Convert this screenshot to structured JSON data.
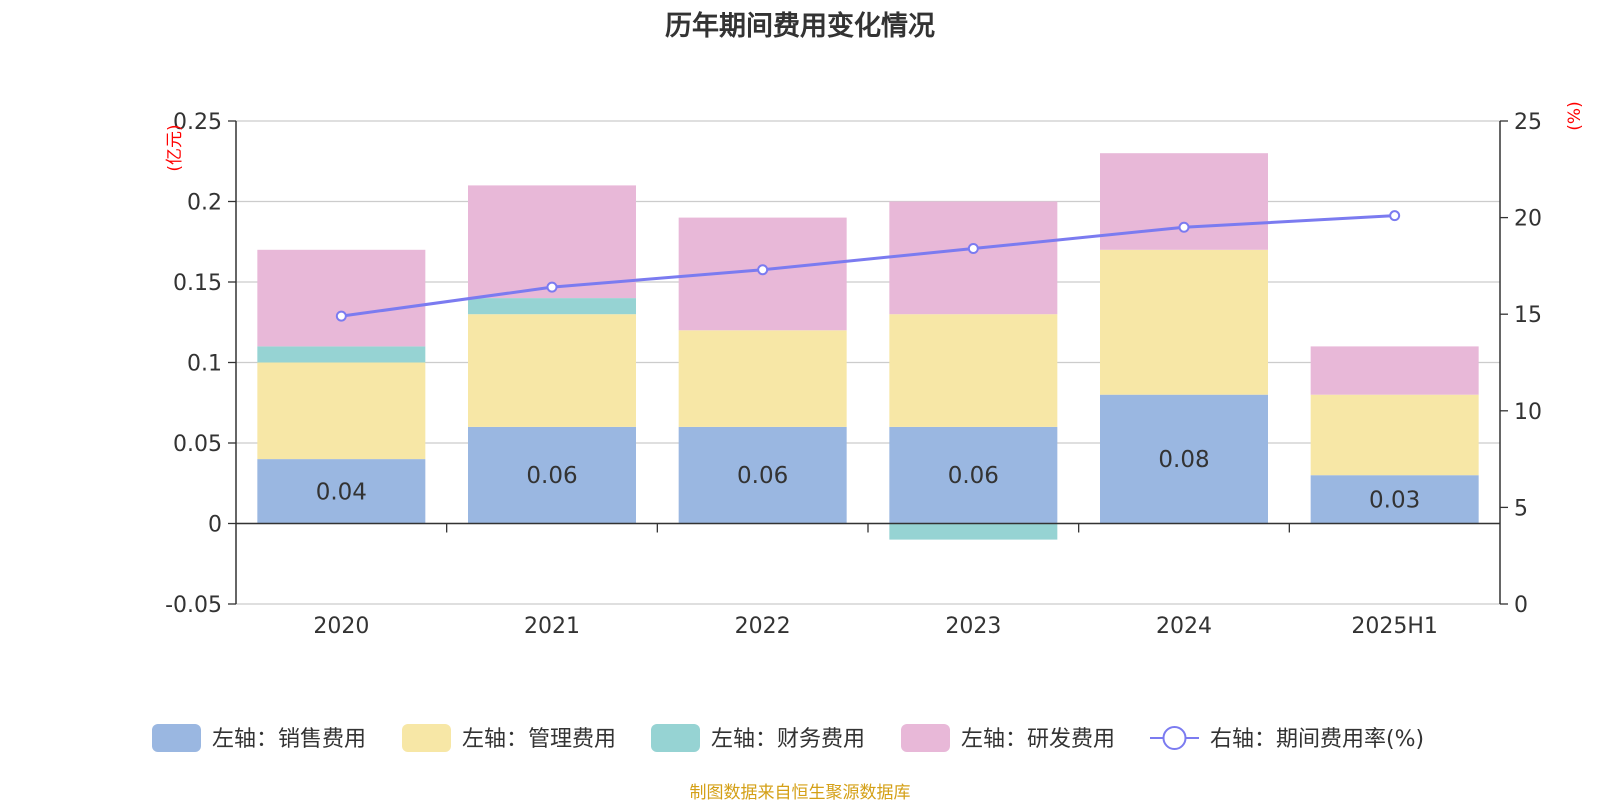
{
  "title": "历年期间费用变化情况",
  "source_note": "制图数据来自恒生聚源数据库",
  "left_unit": "(亿元)",
  "right_unit": "(%)",
  "colors": {
    "sales": "#9ab7e1",
    "admin": "#f7e7a6",
    "finance": "#96d3d3",
    "rnd": "#e8b8d8",
    "rate_line": "#7b7bf0",
    "unit_text": "#ff0000",
    "source_text": "#d4a017"
  },
  "legend": [
    {
      "label": "左轴：销售费用",
      "icon": "swatch",
      "key": "sales"
    },
    {
      "label": "左轴：管理费用",
      "icon": "swatch",
      "key": "admin"
    },
    {
      "label": "左轴：财务费用",
      "icon": "swatch",
      "key": "finance"
    },
    {
      "label": "左轴：研发费用",
      "icon": "swatch",
      "key": "rnd"
    },
    {
      "label": "右轴：期间费用率(%)",
      "icon": "line-circle",
      "key": "rate_line"
    }
  ],
  "chart_data": {
    "type": "bar",
    "stacked": true,
    "categories": [
      "2020",
      "2021",
      "2022",
      "2023",
      "2024",
      "2025H1"
    ],
    "series": [
      {
        "name": "左轴：销售费用",
        "axis": "left",
        "values": [
          0.04,
          0.06,
          0.06,
          0.06,
          0.08,
          0.03
        ]
      },
      {
        "name": "左轴：管理费用",
        "axis": "left",
        "values": [
          0.06,
          0.07,
          0.06,
          0.07,
          0.09,
          0.05
        ]
      },
      {
        "name": "左轴：财务费用",
        "axis": "left",
        "values": [
          0.01,
          0.01,
          0.0,
          -0.01,
          0.0,
          0.0
        ]
      },
      {
        "name": "左轴：研发费用",
        "axis": "left",
        "values": [
          0.06,
          0.07,
          0.07,
          0.07,
          0.06,
          0.03
        ]
      },
      {
        "name": "右轴：期间费用率(%)",
        "axis": "right",
        "type": "line",
        "values": [
          14.9,
          16.4,
          17.3,
          18.4,
          19.5,
          20.1
        ]
      }
    ],
    "data_labels": [
      "0.04",
      "0.06",
      "0.06",
      "0.06",
      "0.08",
      "0.03"
    ],
    "left_axis": {
      "ylim": [
        -0.05,
        0.25
      ],
      "ticks": [
        -0.05,
        0,
        0.05,
        0.1,
        0.15,
        0.2,
        0.25
      ],
      "tick_labels": [
        "-0.05",
        "0",
        "0.05",
        "0.1",
        "0.15",
        "0.2",
        "0.25"
      ]
    },
    "right_axis": {
      "ylim": [
        0,
        25
      ],
      "ticks": [
        0,
        5,
        10,
        15,
        20,
        25
      ],
      "tick_labels": [
        "0",
        "5",
        "10",
        "15",
        "20",
        "25"
      ]
    },
    "grid": true,
    "legend_position": "bottom"
  }
}
